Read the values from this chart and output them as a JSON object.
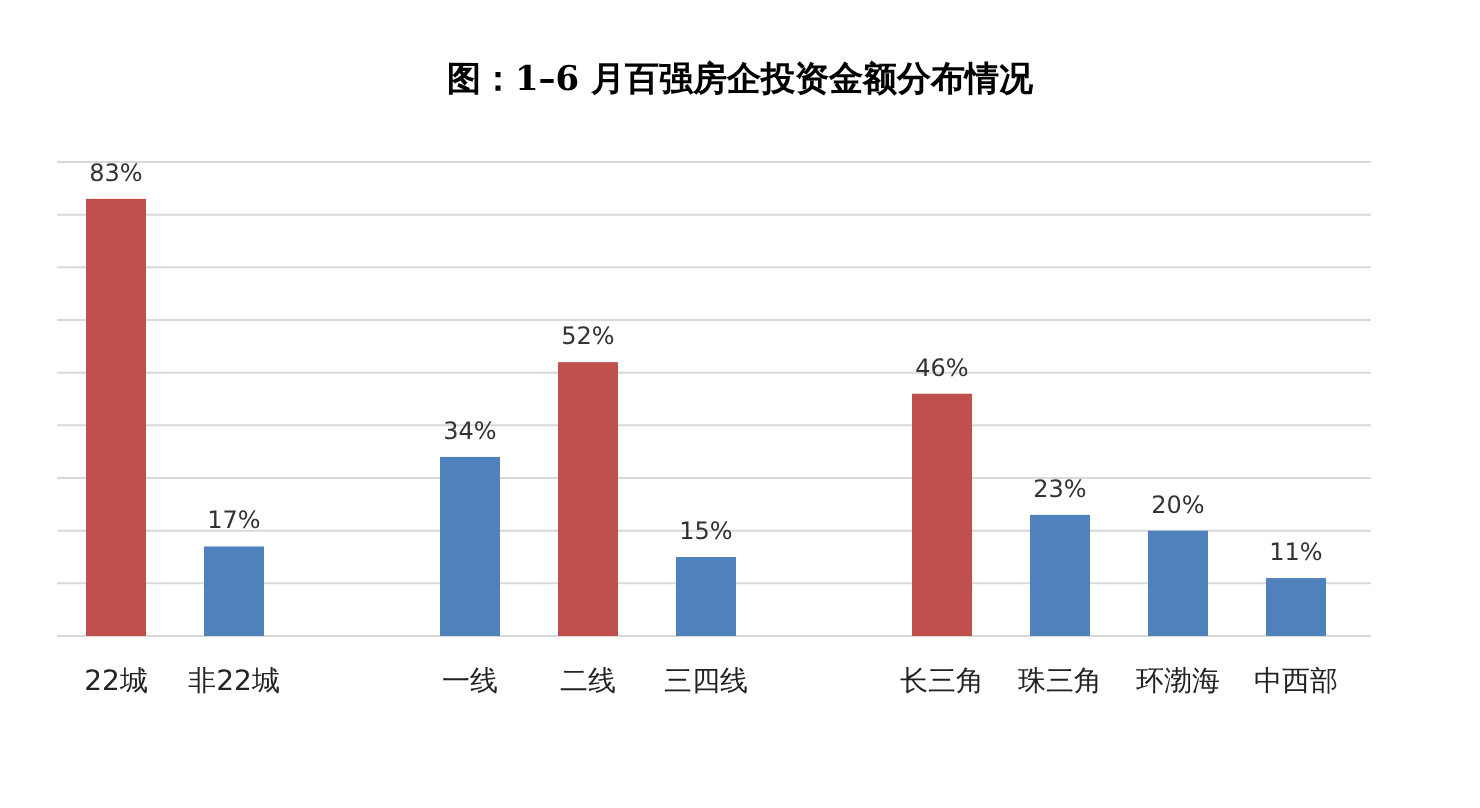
{
  "chart_data": {
    "type": "bar",
    "title": "图：1–6 月百强房企投资金额分布情况",
    "categories": [
      "22城",
      "非22城",
      null,
      "一线",
      "二线",
      "三四线",
      null,
      "长三角",
      "珠三角",
      "环渤海",
      "中西部"
    ],
    "values": [
      83,
      17,
      null,
      34,
      52,
      15,
      null,
      46,
      23,
      20,
      11
    ],
    "colors": [
      "#c0504d",
      "#4f81bd",
      null,
      "#4f81bd",
      "#c0504d",
      "#4f81bd",
      null,
      "#c0504d",
      "#4f81bd",
      "#4f81bd",
      "#4f81bd"
    ],
    "value_labels": [
      "83%",
      "17%",
      null,
      "34%",
      "52%",
      "15%",
      null,
      "46%",
      "23%",
      "20%",
      "11%"
    ],
    "ylim": [
      0,
      90
    ],
    "yticks": [
      {
        "value": 0,
        "label": null
      },
      {
        "value": 10,
        "label": null
      },
      {
        "value": 20,
        "label": null
      },
      {
        "value": 30,
        "label": null
      },
      {
        "value": 40,
        "label": null
      },
      {
        "value": 50,
        "label": null
      },
      {
        "value": 60,
        "label": null
      },
      {
        "value": 70,
        "label": null
      },
      {
        "value": 80,
        "label": null
      },
      {
        "value": 90,
        "label": null
      }
    ],
    "grid": "y",
    "tick_labels": "x"
  }
}
